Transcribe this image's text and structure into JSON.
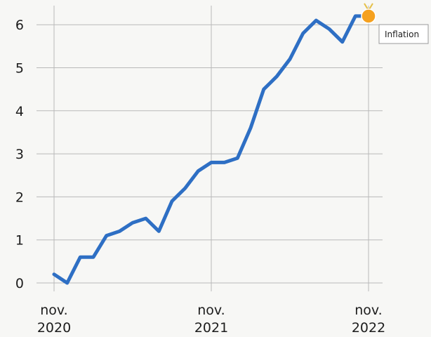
{
  "chart_data": {
    "type": "line",
    "title": "",
    "xlabel": "",
    "ylabel": "",
    "x_ticks": [
      {
        "month_index": 0,
        "line1": "nov.",
        "line2": "2020"
      },
      {
        "month_index": 12,
        "line1": "nov.",
        "line2": "2021"
      },
      {
        "month_index": 24,
        "line1": "nov.",
        "line2": "2022"
      }
    ],
    "y_ticks": [
      0,
      1,
      2,
      3,
      4,
      5,
      6
    ],
    "ylim": [
      0,
      6.3
    ],
    "x_range_months": [
      0,
      24
    ],
    "grid": true,
    "series": [
      {
        "name": "Inflation",
        "color": "#2e6fc4",
        "points": [
          {
            "x": "2020-11",
            "y": 0.2
          },
          {
            "x": "2020-12",
            "y": 0.0
          },
          {
            "x": "2021-01",
            "y": 0.6
          },
          {
            "x": "2021-02",
            "y": 0.6
          },
          {
            "x": "2021-03",
            "y": 1.1
          },
          {
            "x": "2021-04",
            "y": 1.2
          },
          {
            "x": "2021-05",
            "y": 1.4
          },
          {
            "x": "2021-06",
            "y": 1.5
          },
          {
            "x": "2021-07",
            "y": 1.2
          },
          {
            "x": "2021-08",
            "y": 1.9
          },
          {
            "x": "2021-09",
            "y": 2.2
          },
          {
            "x": "2021-10",
            "y": 2.6
          },
          {
            "x": "2021-11",
            "y": 2.8
          },
          {
            "x": "2021-12",
            "y": 2.8
          },
          {
            "x": "2022-01",
            "y": 2.9
          },
          {
            "x": "2022-02",
            "y": 3.6
          },
          {
            "x": "2022-03",
            "y": 4.5
          },
          {
            "x": "2022-04",
            "y": 4.8
          },
          {
            "x": "2022-05",
            "y": 5.2
          },
          {
            "x": "2022-06",
            "y": 5.8
          },
          {
            "x": "2022-07",
            "y": 6.1
          },
          {
            "x": "2022-08",
            "y": 5.9
          },
          {
            "x": "2022-09",
            "y": 5.6
          },
          {
            "x": "2022-10",
            "y": 6.2
          },
          {
            "x": "2022-11",
            "y": 6.2
          }
        ]
      }
    ],
    "highlight": {
      "x": "2022-11",
      "y": 6.2,
      "marker_color": "#f5a11f"
    },
    "tooltip": {
      "label": "Inflation"
    }
  }
}
